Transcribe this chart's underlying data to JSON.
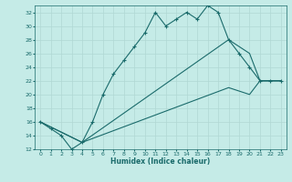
{
  "xlabel": "Humidex (Indice chaleur)",
  "xlim": [
    -0.5,
    23.5
  ],
  "ylim": [
    12,
    33
  ],
  "yticks": [
    12,
    14,
    16,
    18,
    20,
    22,
    24,
    26,
    28,
    30,
    32
  ],
  "xticks": [
    0,
    1,
    2,
    3,
    4,
    5,
    6,
    7,
    8,
    9,
    10,
    11,
    12,
    13,
    14,
    15,
    16,
    17,
    18,
    19,
    20,
    21,
    22,
    23
  ],
  "bg_color": "#c5ebe7",
  "line_color": "#1a6b6b",
  "grid_color": "#b0d8d4",
  "line1_x": [
    0,
    1,
    2,
    3,
    4,
    5,
    6,
    7,
    8,
    9,
    10,
    11,
    12,
    13,
    14,
    15,
    16,
    17,
    18,
    19,
    20,
    21,
    22,
    23
  ],
  "line1_y": [
    16,
    15,
    14,
    12,
    13,
    16,
    20,
    23,
    25,
    27,
    29,
    32,
    30,
    31,
    32,
    31,
    33,
    32,
    28,
    26,
    24,
    22,
    22,
    22
  ],
  "line2_x": [
    0,
    4,
    18,
    20,
    21,
    22,
    23
  ],
  "line2_y": [
    16,
    13,
    28,
    26,
    22,
    22,
    22
  ],
  "line3_x": [
    0,
    4,
    18,
    20,
    21,
    22,
    23
  ],
  "line3_y": [
    16,
    13,
    21,
    20,
    22,
    22,
    22
  ]
}
